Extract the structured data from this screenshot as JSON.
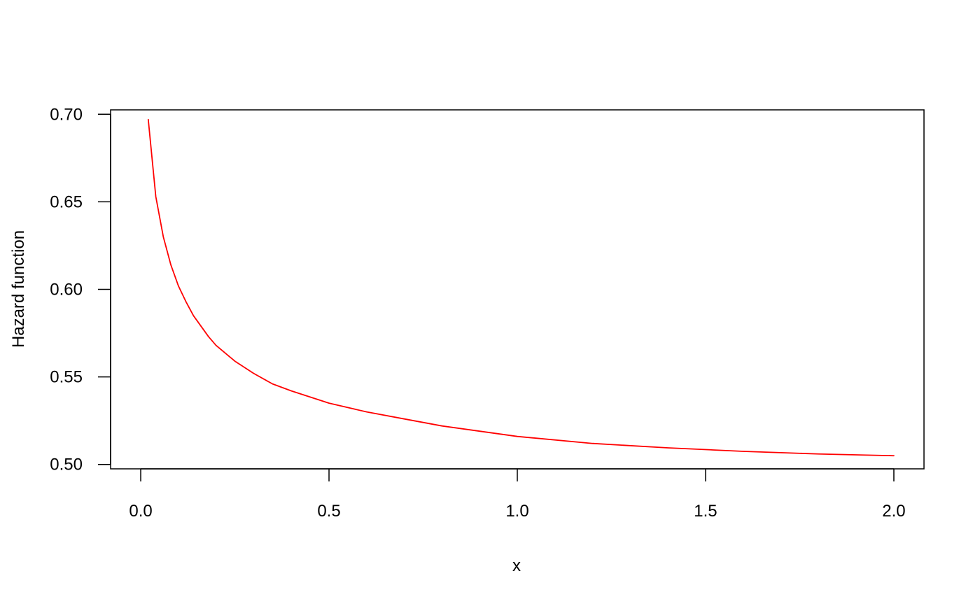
{
  "chart_data": {
    "type": "line",
    "title": "",
    "xlabel": "x",
    "ylabel": "Hazard function",
    "xlim": [
      -0.08,
      2.08
    ],
    "ylim": [
      0.4975,
      0.7025
    ],
    "x_ticks": [
      {
        "value": 0.0,
        "label": "0.0"
      },
      {
        "value": 0.5,
        "label": "0.5"
      },
      {
        "value": 1.0,
        "label": "1.0"
      },
      {
        "value": 1.5,
        "label": "1.5"
      },
      {
        "value": 2.0,
        "label": "2.0"
      }
    ],
    "y_ticks": [
      {
        "value": 0.5,
        "label": "0.50"
      },
      {
        "value": 0.55,
        "label": "0.55"
      },
      {
        "value": 0.6,
        "label": "0.60"
      },
      {
        "value": 0.65,
        "label": "0.65"
      },
      {
        "value": 0.7,
        "label": "0.70"
      }
    ],
    "grid": false,
    "series": [
      {
        "color": "#ff0000",
        "x": [
          0.02,
          0.04,
          0.06,
          0.08,
          0.1,
          0.12,
          0.14,
          0.16,
          0.18,
          0.2,
          0.25,
          0.3,
          0.35,
          0.4,
          0.5,
          0.6,
          0.7,
          0.8,
          0.9,
          1.0,
          1.2,
          1.4,
          1.6,
          1.8,
          2.0
        ],
        "y": [
          0.697,
          0.653,
          0.63,
          0.614,
          0.602,
          0.593,
          0.585,
          0.579,
          0.573,
          0.568,
          0.559,
          0.552,
          0.546,
          0.542,
          0.535,
          0.53,
          0.526,
          0.522,
          0.519,
          0.516,
          0.512,
          0.5095,
          0.5075,
          0.506,
          0.505
        ]
      }
    ]
  }
}
